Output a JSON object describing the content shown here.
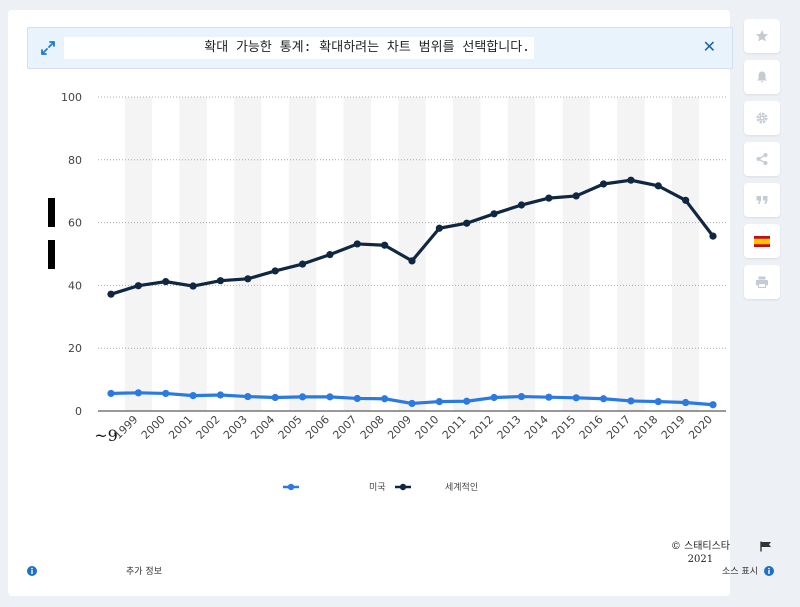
{
  "banner": {
    "text": "확대 가능한 통계: 확대하려는 차트 범위를 선택합니다."
  },
  "sidebar": {
    "buttons": [
      {
        "name": "star-icon"
      },
      {
        "name": "bell-icon"
      },
      {
        "name": "gear-icon"
      },
      {
        "name": "share-icon"
      },
      {
        "name": "quote-icon"
      },
      {
        "name": "flag-es-icon"
      },
      {
        "name": "print-icon"
      }
    ]
  },
  "colors": {
    "us": "#2a7ae2",
    "world": "#0f2740",
    "shade": "#f4f4f4",
    "grid": "#aaaaaa"
  },
  "chart_data": {
    "type": "line",
    "x": [
      "~9",
      "1999",
      "2000",
      "2001",
      "2002",
      "2003",
      "2004",
      "2005",
      "2006",
      "2007",
      "2008",
      "2009",
      "2010",
      "2011",
      "2012",
      "2013",
      "2014",
      "2015",
      "2016",
      "2017",
      "2018",
      "2019",
      "2020"
    ],
    "y_ticks": [
      0,
      20,
      40,
      60,
      80,
      100
    ],
    "ylim": [
      0,
      100
    ],
    "grid": true,
    "series": [
      {
        "name": "미국",
        "values": [
          5.6,
          5.8,
          5.6,
          4.9,
          5.1,
          4.6,
          4.3,
          4.5,
          4.5,
          4.0,
          3.9,
          2.4,
          3.0,
          3.1,
          4.3,
          4.6,
          4.4,
          4.2,
          3.9,
          3.2,
          3.0,
          2.7,
          2.0
        ]
      },
      {
        "name": "세계적인",
        "values": [
          37.2,
          39.9,
          41.2,
          39.8,
          41.5,
          42.1,
          44.6,
          46.8,
          49.8,
          53.2,
          52.8,
          47.8,
          58.2,
          59.8,
          62.8,
          65.6,
          67.8,
          68.5,
          72.3,
          73.5,
          71.7,
          67.1,
          55.7
        ]
      }
    ],
    "legend_position": "bottom-center"
  },
  "source": {
    "copyright": "© 스태티스타",
    "year": "2021",
    "show_source": "소스 표시"
  },
  "footer": {
    "more_info": "추가 정보"
  }
}
